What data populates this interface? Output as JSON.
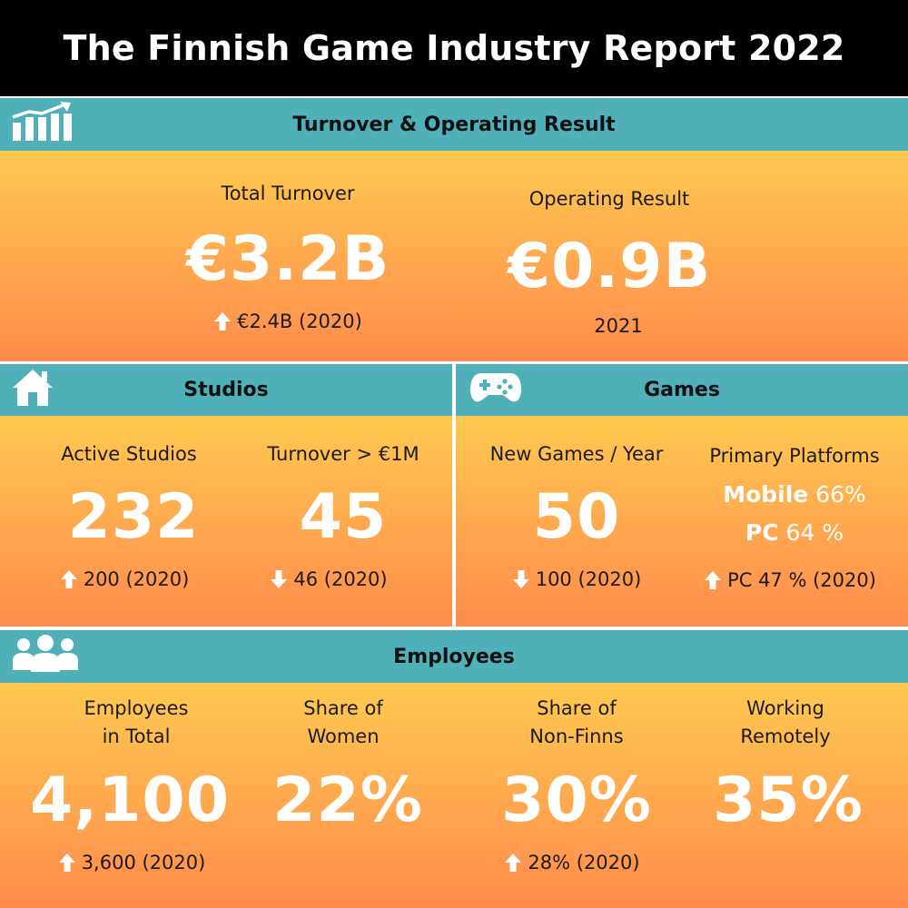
{
  "title": "The Finnish Game Industry Report 2022",
  "colors": {
    "header": "#4fb0ba",
    "gradient_top": "#ffc94f",
    "gradient_bottom": "#ff8b4c",
    "value": "#ffffff"
  },
  "turnover": {
    "header": "Turnover & Operating Result",
    "icon": "bar-chart-icon",
    "total": {
      "label": "Total Turnover",
      "value": "€3.2B",
      "compare": "€2.4B (2020)",
      "trend": "up"
    },
    "operating": {
      "label": "Operating Result",
      "value": "€0.9B",
      "note": "2021"
    }
  },
  "studios": {
    "header": "Studios",
    "icon": "house-icon",
    "active": {
      "label": "Active Studios",
      "value": "232",
      "compare": "200 (2020)",
      "trend": "up"
    },
    "over_1m": {
      "label": "Turnover > €1M",
      "value": "45",
      "compare": "46 (2020)",
      "trend": "down"
    }
  },
  "games": {
    "header": "Games",
    "icon": "gamepad-icon",
    "new": {
      "label": "New Games / Year",
      "value": "50",
      "compare": "100 (2020)",
      "trend": "down"
    },
    "platforms": {
      "label": "Primary Platforms",
      "mobile_name": "Mobile",
      "mobile_value": "66%",
      "pc_name": "PC",
      "pc_value": "64 %",
      "compare": "PC 47 % (2020)",
      "trend": "up"
    }
  },
  "employees": {
    "header": "Employees",
    "icon": "people-icon",
    "total": {
      "label1": "Employees",
      "label2": "in Total",
      "value": "4,100",
      "compare": "3,600 (2020)",
      "trend": "up"
    },
    "women": {
      "label1": "Share of",
      "label2": "Women",
      "value": "22%"
    },
    "non_finns": {
      "label1": "Share of",
      "label2": "Non-Finns",
      "value": "30%",
      "compare": "28% (2020)",
      "trend": "up"
    },
    "remote": {
      "label1": "Working",
      "label2": "Remotely",
      "value": "35%"
    }
  }
}
